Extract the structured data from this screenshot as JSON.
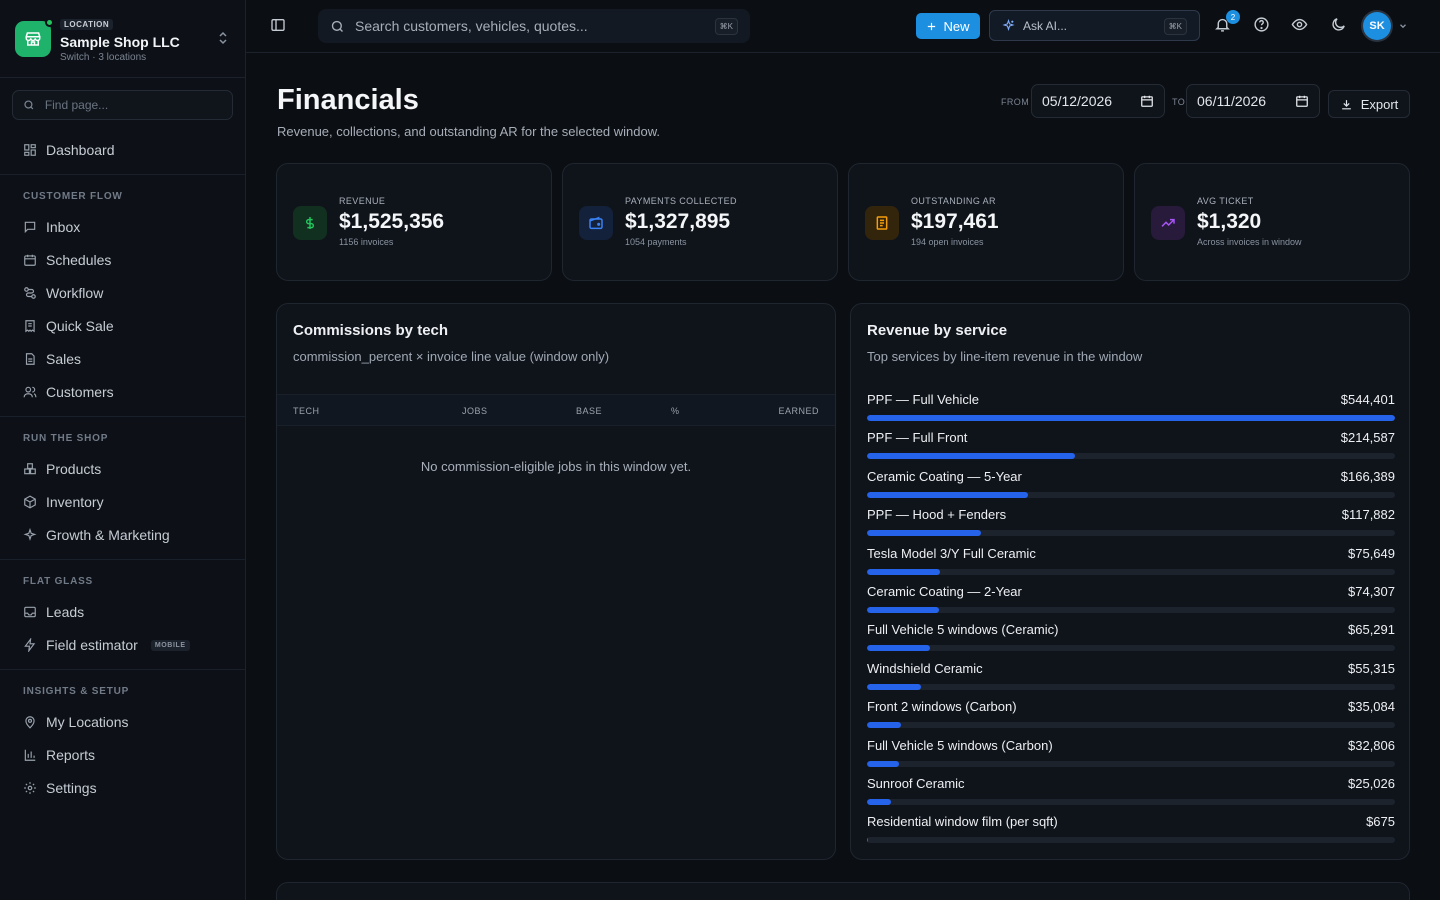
{
  "location": {
    "badge": "LOCATION",
    "name": "Sample Shop LLC",
    "sub": "Switch · 3 locations"
  },
  "find_placeholder": "Find page...",
  "nav": {
    "dashboard": "Dashboard",
    "sections": [
      {
        "title": "CUSTOMER FLOW",
        "items": [
          {
            "label": "Inbox",
            "icon": "inbox-icon"
          },
          {
            "label": "Schedules",
            "icon": "calendar-icon"
          },
          {
            "label": "Workflow",
            "icon": "workflow-icon"
          },
          {
            "label": "Quick Sale",
            "icon": "receipt-icon"
          },
          {
            "label": "Sales",
            "icon": "document-icon"
          },
          {
            "label": "Customers",
            "icon": "users-icon"
          }
        ]
      },
      {
        "title": "RUN THE SHOP",
        "items": [
          {
            "label": "Products",
            "icon": "boxes-icon"
          },
          {
            "label": "Inventory",
            "icon": "package-icon"
          },
          {
            "label": "Growth & Marketing",
            "icon": "sparkle-icon"
          }
        ]
      },
      {
        "title": "FLAT GLASS",
        "items": [
          {
            "label": "Leads",
            "icon": "inbox-icon"
          },
          {
            "label": "Field estimator",
            "icon": "bolt-icon",
            "badge": "MOBILE"
          }
        ]
      },
      {
        "title": "INSIGHTS & SETUP",
        "items": [
          {
            "label": "My Locations",
            "icon": "map-pin-icon"
          },
          {
            "label": "Reports",
            "icon": "bar-chart-icon"
          },
          {
            "label": "Settings",
            "icon": "gear-icon"
          }
        ]
      }
    ]
  },
  "topbar": {
    "search_placeholder": "Search customers, vehicles, quotes...",
    "search_kbd": "⌘K",
    "new_label": "New",
    "ask_label": "Ask AI...",
    "ask_kbd": "⌘K",
    "notif_count": "2",
    "avatar": "SK"
  },
  "page": {
    "title": "Financials",
    "subtitle": "Revenue, collections, and outstanding AR for the selected window.",
    "from_label": "FROM",
    "from_date": "05/12/2026",
    "to_label": "TO",
    "to_date": "06/11/2026",
    "export_label": "Export"
  },
  "kpis": [
    {
      "label": "REVENUE",
      "value": "$1,525,356",
      "sub": "1156 invoices",
      "icon": "dollar-icon",
      "color": "#22c55e"
    },
    {
      "label": "PAYMENTS COLLECTED",
      "value": "$1,327,895",
      "sub": "1054 payments",
      "icon": "wallet-icon",
      "color": "#3b82f6"
    },
    {
      "label": "OUTSTANDING AR",
      "value": "$197,461",
      "sub": "194 open invoices",
      "icon": "receipt-icon",
      "color": "#f59e0b"
    },
    {
      "label": "AVG TICKET",
      "value": "$1,320",
      "sub": "Across invoices in window",
      "icon": "trending-up-icon",
      "color": "#a855f7"
    }
  ],
  "commissions": {
    "title": "Commissions by tech",
    "subtitle": "commission_percent × invoice line value (window only)",
    "columns": [
      "TECH",
      "JOBS",
      "BASE",
      "%",
      "EARNED"
    ],
    "empty": "No commission-eligible jobs in this window yet."
  },
  "revenue_by_service": {
    "title": "Revenue by service",
    "subtitle": "Top services by line-item revenue in the window",
    "items": [
      {
        "name": "PPF — Full Vehicle",
        "value": "$544,401",
        "amount": 544401
      },
      {
        "name": "PPF — Full Front",
        "value": "$214,587",
        "amount": 214587
      },
      {
        "name": "Ceramic Coating — 5-Year",
        "value": "$166,389",
        "amount": 166389
      },
      {
        "name": "PPF — Hood + Fenders",
        "value": "$117,882",
        "amount": 117882
      },
      {
        "name": "Tesla Model 3/Y Full Ceramic",
        "value": "$75,649",
        "amount": 75649
      },
      {
        "name": "Ceramic Coating — 2-Year",
        "value": "$74,307",
        "amount": 74307
      },
      {
        "name": "Full Vehicle 5 windows (Ceramic)",
        "value": "$65,291",
        "amount": 65291
      },
      {
        "name": "Windshield Ceramic",
        "value": "$55,315",
        "amount": 55315
      },
      {
        "name": "Front 2 windows (Carbon)",
        "value": "$35,084",
        "amount": 35084
      },
      {
        "name": "Full Vehicle 5 windows (Carbon)",
        "value": "$32,806",
        "amount": 32806
      },
      {
        "name": "Sunroof Ceramic",
        "value": "$25,026",
        "amount": 25026
      },
      {
        "name": "Residential window film (per sqft)",
        "value": "$675",
        "amount": 675
      }
    ]
  }
}
